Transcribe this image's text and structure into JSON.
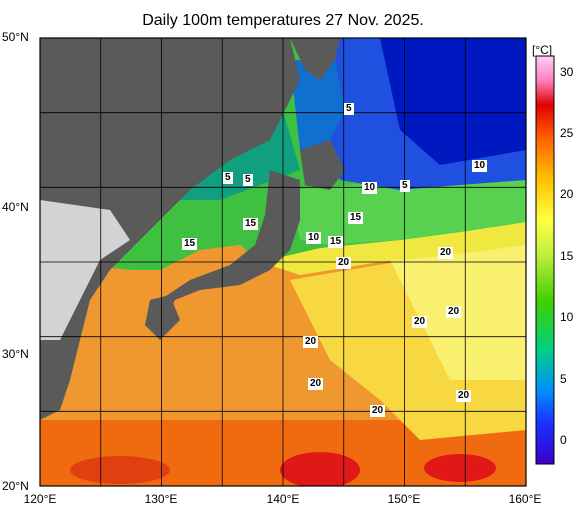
{
  "title": "Daily 100m temperatures 27 Nov. 2025.",
  "map": {
    "lat_labels": [
      "50°N",
      "40°N",
      "30°N",
      "20°N"
    ],
    "lon_labels": [
      "120°E",
      "130°E",
      "140°E",
      "150°E",
      "160°E"
    ],
    "lon_range": [
      120,
      160
    ],
    "lat_range": [
      20,
      50
    ],
    "contour_labels": [
      "5",
      "5",
      "5",
      "5",
      "10",
      "10",
      "10",
      "10",
      "15",
      "15",
      "15",
      "15",
      "20",
      "20",
      "20",
      "20",
      "20",
      "20",
      "20",
      "20"
    ]
  },
  "colorbar": {
    "unit": "[°C]",
    "ticks": [
      "30",
      "25",
      "20",
      "15",
      "10",
      "5",
      "0"
    ]
  },
  "colors": {
    "land": "#5a5a5a",
    "land_outside": "#d3d3d3",
    "grid": "#000000"
  }
}
